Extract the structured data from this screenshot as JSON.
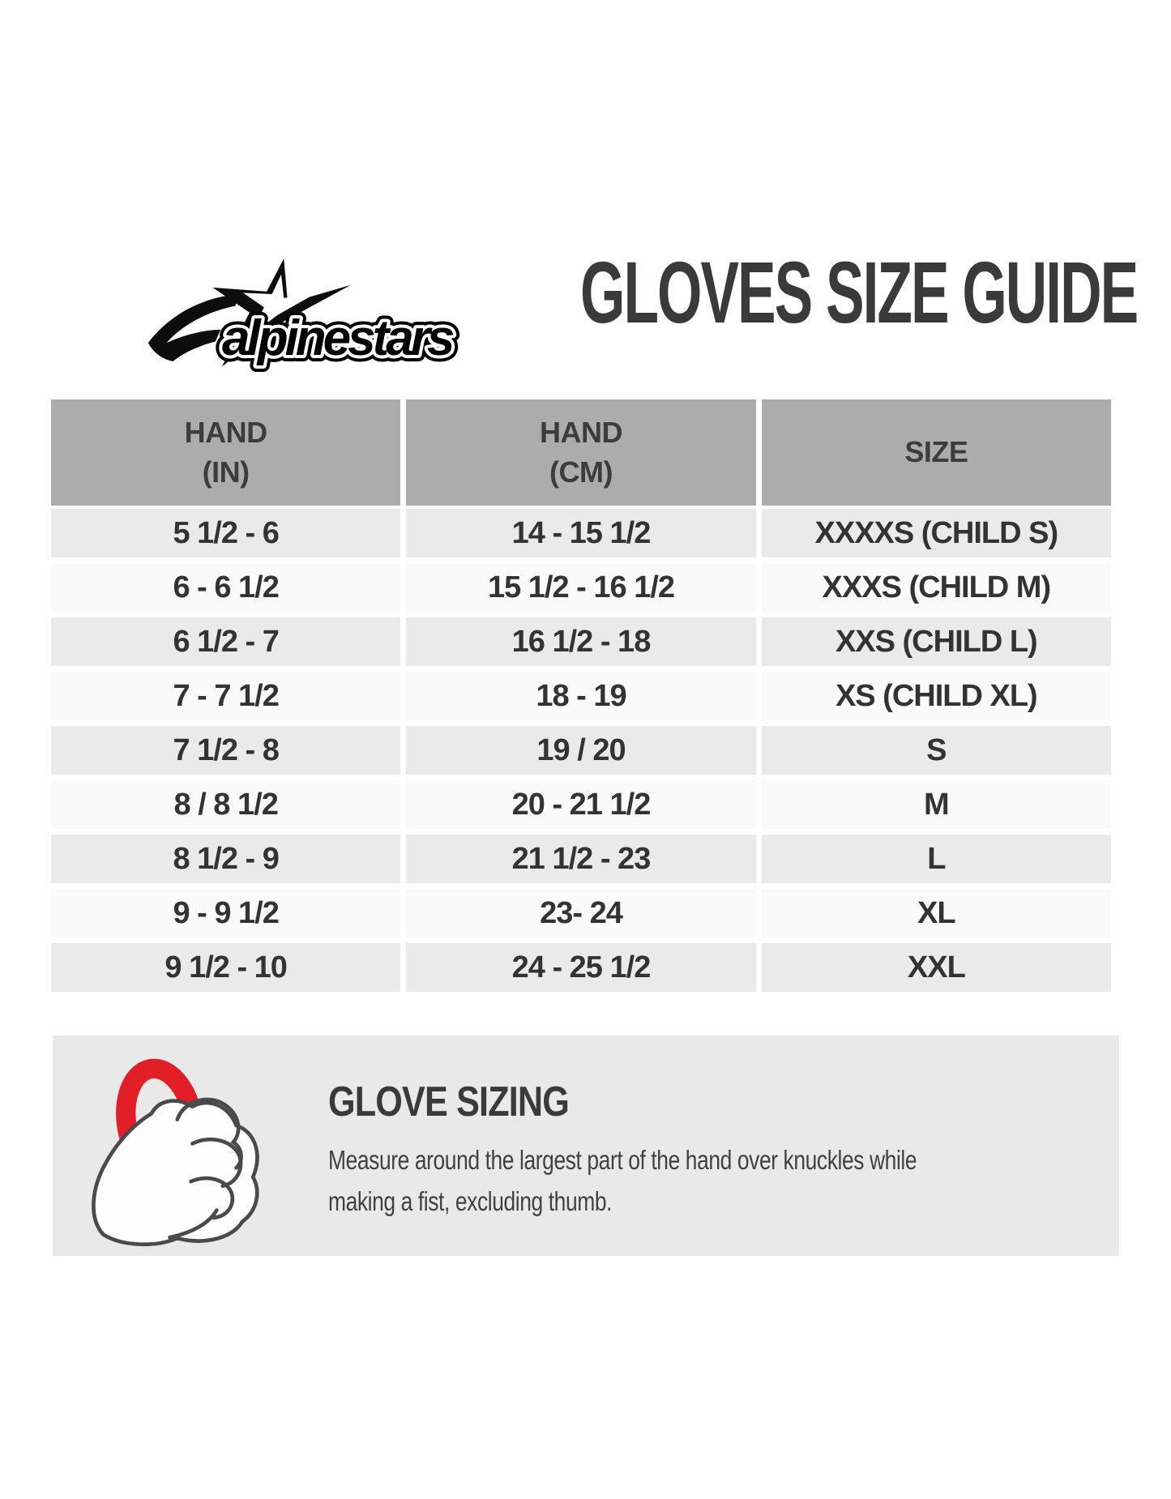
{
  "brand": {
    "logo_text": "alpinestars",
    "star_icon": "alpinestars-star-logo"
  },
  "header": {
    "title": "GLOVES SIZE GUIDE"
  },
  "table": {
    "columns": [
      {
        "line1": "HAND",
        "line2": "(IN)"
      },
      {
        "line1": "HAND",
        "line2": "(CM)"
      },
      {
        "line1": "SIZE",
        "line2": ""
      }
    ],
    "rows": [
      [
        "5 1/2 - 6",
        "14 - 15 1/2",
        "XXXXS (CHILD S)"
      ],
      [
        "6 - 6 1/2",
        "15 1/2 - 16 1/2",
        "XXXS (CHILD M)"
      ],
      [
        "6 1/2 - 7",
        "16 1/2 - 18",
        "XXS (CHILD L)"
      ],
      [
        "7 - 7 1/2",
        "18 - 19",
        "XS (CHILD XL)"
      ],
      [
        "7 1/2 - 8",
        "19 / 20",
        "S"
      ],
      [
        "8 / 8 1/2",
        "20 - 21 1/2",
        "M"
      ],
      [
        "8 1/2 - 9",
        "21 1/2 - 23",
        "L"
      ],
      [
        "9 - 9 1/2",
        "23- 24",
        "XL"
      ],
      [
        "9 1/2 - 10",
        "24 - 25 1/2",
        "XXL"
      ]
    ]
  },
  "chart_data": {
    "type": "table",
    "title": "GLOVES SIZE GUIDE",
    "columns": [
      "HAND (IN)",
      "HAND (CM)",
      "SIZE"
    ],
    "rows": [
      [
        "5 1/2 - 6",
        "14 - 15 1/2",
        "XXXXS (CHILD S)"
      ],
      [
        "6 - 6 1/2",
        "15 1/2 - 16 1/2",
        "XXXS (CHILD M)"
      ],
      [
        "6 1/2 - 7",
        "16 1/2 - 18",
        "XXS (CHILD L)"
      ],
      [
        "7 - 7 1/2",
        "18 - 19",
        "XS (CHILD XL)"
      ],
      [
        "7 1/2 - 8",
        "19 / 20",
        "S"
      ],
      [
        "8 / 8 1/2",
        "20 - 21 1/2",
        "M"
      ],
      [
        "8 1/2 - 9",
        "21 1/2 - 23",
        "L"
      ],
      [
        "9 - 9 1/2",
        "23- 24",
        "XL"
      ],
      [
        "9 1/2 - 10",
        "24 - 25 1/2",
        "XXL"
      ]
    ]
  },
  "sizing_note": {
    "title": "GLOVE SIZING",
    "line1": "Measure around the largest part of the hand over knuckles while",
    "line2": "making a fist, excluding thumb.",
    "hand_icon": "fist-measure-icon"
  },
  "colors": {
    "header_gray": "#acacac",
    "row_gray": "#eaeaea",
    "row_white": "#fafafa",
    "note_box_gray": "#e9e9e9",
    "text_dark": "#333333",
    "accent_red": "#e21e26"
  }
}
